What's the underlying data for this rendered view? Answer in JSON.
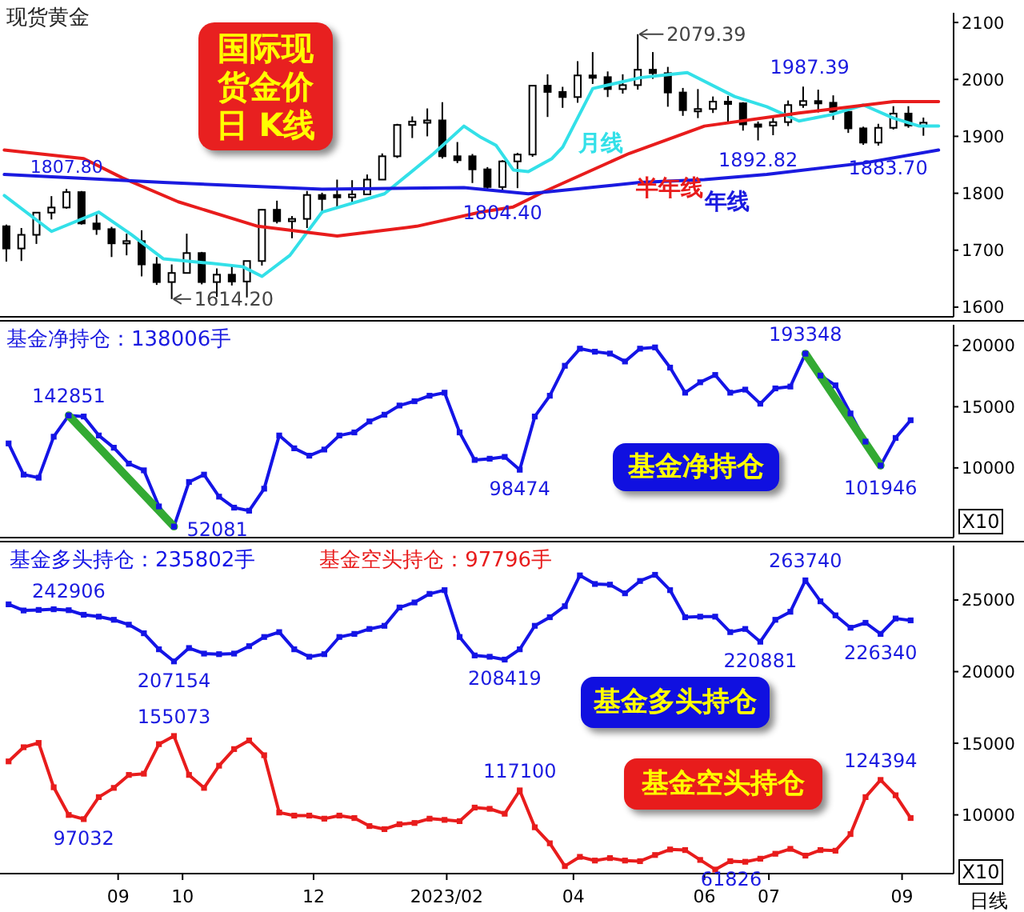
{
  "chart_data": [
    {
      "type": "candlestick",
      "title": "现货黄金",
      "color": "#000000",
      "tick_labels": "y",
      "xlim": [
        "2022-07-08",
        "2023-09-25"
      ],
      "ylim": [
        1583,
        2117
      ],
      "yticks": [
        1600,
        1700,
        1800,
        1900,
        2000,
        2100
      ],
      "x": [
        "2022-07-11",
        "2022-07-18",
        "2022-07-25",
        "2022-08-01",
        "2022-08-08",
        "2022-08-15",
        "2022-08-22",
        "2022-08-29",
        "2022-09-05",
        "2022-09-12",
        "2022-09-19",
        "2022-09-26",
        "2022-10-03",
        "2022-10-10",
        "2022-10-17",
        "2022-10-24",
        "2022-10-31",
        "2022-11-07",
        "2022-11-14",
        "2022-11-21",
        "2022-11-28",
        "2022-12-05",
        "2022-12-12",
        "2022-12-19",
        "2022-12-26",
        "2023-01-02",
        "2023-01-09",
        "2023-01-16",
        "2023-01-23",
        "2023-01-30",
        "2023-02-06",
        "2023-02-13",
        "2023-02-20",
        "2023-02-27",
        "2023-03-06",
        "2023-03-13",
        "2023-03-20",
        "2023-03-27",
        "2023-04-03",
        "2023-04-10",
        "2023-04-17",
        "2023-04-24",
        "2023-05-01",
        "2023-05-08",
        "2023-05-15",
        "2023-05-22",
        "2023-05-29",
        "2023-06-05",
        "2023-06-12",
        "2023-06-19",
        "2023-06-26",
        "2023-07-03",
        "2023-07-10",
        "2023-07-17",
        "2023-07-24",
        "2023-07-31",
        "2023-08-07",
        "2023-08-14",
        "2023-08-21",
        "2023-08-28",
        "2023-09-04",
        "2023-09-11"
      ],
      "ohlc": [
        [
          1742,
          1745,
          1680,
          1703
        ],
        [
          1703,
          1739,
          1681,
          1727
        ],
        [
          1727,
          1767,
          1711,
          1766
        ],
        [
          1766,
          1795,
          1754,
          1775
        ],
        [
          1775,
          1807.8,
          1773,
          1802
        ],
        [
          1802,
          1804,
          1745,
          1747
        ],
        [
          1747,
          1765,
          1727,
          1737
        ],
        [
          1737,
          1741,
          1688,
          1712
        ],
        [
          1712,
          1729,
          1691,
          1716
        ],
        [
          1716,
          1735,
          1654,
          1675
        ],
        [
          1675,
          1688,
          1639,
          1644
        ],
        [
          1644,
          1675,
          1614.2,
          1660
        ],
        [
          1660,
          1729,
          1660,
          1695
        ],
        [
          1695,
          1697,
          1640,
          1644
        ],
        [
          1644,
          1668,
          1618,
          1657
        ],
        [
          1657,
          1675,
          1638,
          1645
        ],
        [
          1645,
          1681,
          1617,
          1681
        ],
        [
          1681,
          1772,
          1673,
          1771
        ],
        [
          1771,
          1787,
          1747,
          1751
        ],
        [
          1751,
          1760,
          1721,
          1755
        ],
        [
          1755,
          1804,
          1739,
          1797
        ],
        [
          1797,
          1801,
          1764,
          1790
        ],
        [
          1797,
          1824,
          1774,
          1793
        ],
        [
          1793,
          1823,
          1784,
          1798
        ],
        [
          1798,
          1833,
          1797,
          1824
        ],
        [
          1824,
          1870,
          1824,
          1865
        ],
        [
          1865,
          1922,
          1862,
          1920
        ],
        [
          1920,
          1935,
          1897,
          1926
        ],
        [
          1926,
          1949,
          1900,
          1928
        ],
        [
          1928,
          1960,
          1861,
          1865
        ],
        [
          1865,
          1890,
          1853,
          1858
        ],
        [
          1865,
          1869,
          1818,
          1842
        ],
        [
          1842,
          1846,
          1807,
          1811
        ],
        [
          1811,
          1858,
          1804.4,
          1856
        ],
        [
          1856,
          1871,
          1809,
          1868
        ],
        [
          1868,
          1989,
          1864,
          1989
        ],
        [
          1989,
          2009,
          1934,
          1978
        ],
        [
          1978,
          1987,
          1950,
          1969
        ],
        [
          1969,
          2032,
          1959,
          2007
        ],
        [
          2007,
          2048,
          1992,
          2004
        ],
        [
          2004,
          2014,
          1969,
          1983
        ],
        [
          1983,
          2009,
          1975,
          1990
        ],
        [
          1990,
          2079.39,
          1982,
          2017
        ],
        [
          2017,
          2048,
          2001,
          2011
        ],
        [
          2011,
          2022,
          1952,
          1977
        ],
        [
          1977,
          1985,
          1936,
          1946
        ],
        [
          1946,
          1983,
          1932,
          1948
        ],
        [
          1948,
          1970,
          1941,
          1961
        ],
        [
          1961,
          1971,
          1925,
          1958
        ],
        [
          1958,
          1960,
          1910,
          1921
        ],
        [
          1921,
          1926,
          1892.82,
          1919
        ],
        [
          1919,
          1935,
          1902,
          1925
        ],
        [
          1925,
          1963,
          1918,
          1955
        ],
        [
          1955,
          1987.39,
          1950,
          1962
        ],
        [
          1962,
          1982,
          1942,
          1959
        ],
        [
          1959,
          1972,
          1929,
          1943
        ],
        [
          1943,
          1948,
          1906,
          1914
        ],
        [
          1914,
          1917,
          1885,
          1889
        ],
        [
          1889,
          1922,
          1883.7,
          1915
        ],
        [
          1915,
          1953,
          1912,
          1940
        ],
        [
          1940,
          1953,
          1915,
          1919
        ],
        [
          1919,
          1933,
          1901,
          1924
        ]
      ],
      "series": [
        {
          "type": "line",
          "name": "月线",
          "color": "#33e0e8",
          "x": [
            "2022-07-10",
            "2022-08-01",
            "2022-08-23",
            "2022-09-07",
            "2022-09-22",
            "2022-10-14",
            "2022-10-29",
            "2022-11-07",
            "2022-11-20",
            "2022-12-05",
            "2023-01-03",
            "2023-01-26",
            "2023-02-09",
            "2023-02-17",
            "2023-02-24",
            "2023-03-04",
            "2023-03-11",
            "2023-03-22",
            "2023-03-27",
            "2023-04-10",
            "2023-05-02",
            "2023-05-17",
            "2023-05-24",
            "2023-06-15",
            "2023-06-30",
            "2023-07-15",
            "2023-07-30",
            "2023-08-14",
            "2023-08-28",
            "2023-09-09",
            "2023-09-18"
          ],
          "values": [
            1796,
            1733,
            1767,
            1728,
            1685,
            1677,
            1671,
            1654,
            1691,
            1767,
            1799,
            1870,
            1918,
            1898,
            1884,
            1841,
            1838,
            1861,
            1881,
            1984,
            2003,
            2009,
            2012,
            1970,
            1952,
            1927,
            1938,
            1955,
            1932,
            1918,
            1918
          ]
        },
        {
          "type": "line",
          "name": "半年线",
          "color": "#e81c1c",
          "x": [
            "2022-07-10",
            "2022-08-16",
            "2022-09-03",
            "2022-09-29",
            "2022-11-05",
            "2022-12-12",
            "2023-01-18",
            "2023-02-17",
            "2023-03-04",
            "2023-03-19",
            "2023-04-27",
            "2023-06-01",
            "2023-07-15",
            "2023-08-28",
            "2023-09-18"
          ],
          "values": [
            1876,
            1861,
            1827,
            1785,
            1742,
            1725,
            1742,
            1767,
            1776,
            1804,
            1870,
            1918,
            1941,
            1961,
            1961
          ]
        },
        {
          "type": "line",
          "name": "年线",
          "color": "#1a1ae0",
          "x": [
            "2022-07-10",
            "2022-09-22",
            "2022-12-05",
            "2023-02-09",
            "2023-03-11",
            "2023-05-02",
            "2023-06-01",
            "2023-06-30",
            "2023-08-14",
            "2023-09-18"
          ],
          "values": [
            1833,
            1819,
            1807,
            1810,
            1799,
            1819,
            1824,
            1833,
            1853,
            1876
          ]
        }
      ],
      "annotations": [
        "国际现货金价日 K线",
        {
          "text": "1807.80",
          "x": "2022-08-08",
          "y": 1807.8
        },
        {
          "text": "1614.20",
          "x": "2022-09-26",
          "y": 1614.2
        },
        {
          "text": "2079.39",
          "x": "2023-05-01",
          "y": 2079.39
        },
        {
          "text": "1987.39",
          "x": "2023-07-17",
          "y": 1987.39
        },
        {
          "text": "1892.82",
          "x": "2023-06-26",
          "y": 1892.82
        },
        {
          "text": "1804.40",
          "x": "2023-02-27",
          "y": 1804.4
        },
        {
          "text": "1883.70",
          "x": "2023-08-21",
          "y": 1883.7
        }
      ]
    },
    {
      "type": "line",
      "title": "基金净持仓：138006手",
      "marker": "square",
      "tick_labels": "y",
      "xlim": [
        "2022-07-08",
        "2023-09-25"
      ],
      "ylim": [
        4300,
        21700
      ],
      "yticks": [
        10000,
        15000,
        20000
      ],
      "x": [
        "2022-07-12",
        "2022-07-19",
        "2022-07-26",
        "2022-08-02",
        "2022-08-09",
        "2022-08-16",
        "2022-08-23",
        "2022-08-30",
        "2022-09-06",
        "2022-09-13",
        "2022-09-20",
        "2022-09-27",
        "2022-10-04",
        "2022-10-11",
        "2022-10-18",
        "2022-10-25",
        "2022-11-01",
        "2022-11-08",
        "2022-11-15",
        "2022-11-22",
        "2022-11-29",
        "2022-12-06",
        "2022-12-13",
        "2022-12-20",
        "2022-12-27",
        "2023-01-03",
        "2023-01-10",
        "2023-01-17",
        "2023-01-24",
        "2023-01-31",
        "2023-02-07",
        "2023-02-14",
        "2023-02-21",
        "2023-02-28",
        "2023-03-07",
        "2023-03-14",
        "2023-03-21",
        "2023-03-28",
        "2023-04-04",
        "2023-04-11",
        "2023-04-18",
        "2023-04-25",
        "2023-05-02",
        "2023-05-09",
        "2023-05-16",
        "2023-05-23",
        "2023-05-30",
        "2023-06-06",
        "2023-06-13",
        "2023-06-20",
        "2023-06-27",
        "2023-07-04",
        "2023-07-11",
        "2023-07-18",
        "2023-07-25",
        "2023-08-01",
        "2023-08-08",
        "2023-08-15",
        "2023-08-22",
        "2023-08-29",
        "2023-09-05"
      ],
      "series": [
        {
          "color": "#1414e6",
          "values": [
            12000,
            9450,
            9200,
            12550,
            14285.1,
            14200,
            12650,
            11650,
            10350,
            9800,
            6850,
            5208.1,
            8850,
            9450,
            7650,
            6750,
            6500,
            8300,
            12650,
            11600,
            11000,
            11500,
            12650,
            12900,
            13800,
            14350,
            15100,
            15450,
            15900,
            16150,
            12900,
            10650,
            10750,
            10900,
            9847.4,
            14200,
            15900,
            18350,
            19750,
            19500,
            19350,
            18700,
            19750,
            19850,
            18200,
            16150,
            17000,
            17600,
            16150,
            16400,
            15250,
            16500,
            16650,
            19334.8,
            17550,
            16750,
            14450,
            12150,
            10194.6,
            12450,
            13900
          ]
        },
        {
          "type": "line",
          "marker": "none",
          "color": "#33aa33",
          "x": [
            "2022-08-09",
            "2022-09-27"
          ],
          "values": [
            14285.1,
            5208.1
          ]
        },
        {
          "type": "line",
          "marker": "none",
          "color": "#33aa33",
          "x": [
            "2023-07-18",
            "2023-08-22"
          ],
          "values": [
            19334.8,
            10194.6
          ]
        }
      ],
      "annotations": [
        {
          "text": "142851",
          "x": "2022-08-09",
          "y": 14285.1
        },
        {
          "text": "52081",
          "x": "2022-09-27",
          "y": 5208.1
        },
        {
          "text": "98474",
          "x": "2023-03-07",
          "y": 9847.4
        },
        {
          "text": "193348",
          "x": "2023-07-18",
          "y": 19334.8
        },
        {
          "text": "101946",
          "x": "2023-08-22",
          "y": 10194.6
        },
        "基金净持仓",
        "X10"
      ]
    },
    {
      "type": "line",
      "marker": "square",
      "legend": "top left",
      "xlim": [
        "2022-07-08",
        "2023-09-25"
      ],
      "ylim": [
        5900,
        28800
      ],
      "yticks": [
        10000,
        15000,
        20000,
        25000
      ],
      "xticks": [
        {
          "value": "2022-09-01",
          "label": "09"
        },
        {
          "value": "2022-10-01",
          "label": "10"
        },
        {
          "value": "2022-12-01",
          "label": "12"
        },
        {
          "value": "2023-02-01",
          "label": "2023/02"
        },
        {
          "value": "2023-04-01",
          "label": "04"
        },
        {
          "value": "2023-06-01",
          "label": "06"
        },
        {
          "value": "2023-07-01",
          "label": "07"
        },
        {
          "value": "2023-09-01",
          "label": "09"
        }
      ],
      "x": [
        "2022-07-12",
        "2022-07-19",
        "2022-07-26",
        "2022-08-02",
        "2022-08-09",
        "2022-08-16",
        "2022-08-23",
        "2022-08-30",
        "2022-09-06",
        "2022-09-13",
        "2022-09-20",
        "2022-09-27",
        "2022-10-04",
        "2022-10-11",
        "2022-10-18",
        "2022-10-25",
        "2022-11-01",
        "2022-11-08",
        "2022-11-15",
        "2022-11-22",
        "2022-11-29",
        "2022-12-06",
        "2022-12-13",
        "2022-12-20",
        "2022-12-27",
        "2023-01-03",
        "2023-01-10",
        "2023-01-17",
        "2023-01-24",
        "2023-01-31",
        "2023-02-07",
        "2023-02-14",
        "2023-02-21",
        "2023-02-28",
        "2023-03-07",
        "2023-03-14",
        "2023-03-21",
        "2023-03-28",
        "2023-04-04",
        "2023-04-11",
        "2023-04-18",
        "2023-04-25",
        "2023-05-02",
        "2023-05-09",
        "2023-05-16",
        "2023-05-23",
        "2023-05-30",
        "2023-06-06",
        "2023-06-13",
        "2023-06-20",
        "2023-06-27",
        "2023-07-04",
        "2023-07-11",
        "2023-07-18",
        "2023-07-25",
        "2023-08-01",
        "2023-08-08",
        "2023-08-15",
        "2023-08-22",
        "2023-08-29",
        "2023-09-05"
      ],
      "series": [
        {
          "name": "基金多头持仓：235802手",
          "color": "#1414e6",
          "values": [
            24700,
            24270,
            24310,
            24355,
            24290.6,
            23970,
            23840,
            23620,
            23280,
            22680,
            21560,
            20715.4,
            21650,
            21260,
            21220,
            21260,
            21780,
            22420,
            22760,
            21560,
            21040,
            21220,
            22420,
            22635,
            22980,
            23200,
            24480,
            24830,
            25430,
            25690,
            22420,
            21130,
            21040,
            20841.9,
            21560,
            23200,
            23800,
            24570,
            26720,
            26120,
            26075,
            25470,
            26330,
            26760,
            25690,
            23800,
            23840,
            23840,
            22760,
            22980,
            22088.1,
            23620,
            24180,
            26374,
            24910,
            23930,
            23065,
            23410,
            22634,
            23710,
            23580.2
          ]
        },
        {
          "name": "基金空头持仓：97796手",
          "color": "#e81c1c",
          "values": [
            13734,
            14723,
            15024,
            11928,
            9993,
            9703.2,
            11240,
            11885,
            12790,
            12874,
            14938,
            15507.3,
            12790,
            11885,
            13433,
            14594,
            15196,
            14164,
            10165,
            9950,
            9950,
            9735,
            9950,
            9778,
            9220,
            9004,
            9348,
            9434,
            9735,
            9650,
            9563,
            10509,
            10423,
            10079,
            11710,
            9133,
            8015,
            6424,
            7069,
            6811,
            6983,
            6811,
            6768,
            7198,
            7585,
            7542,
            6854,
            6182.6,
            6768,
            6725,
            6940,
            7284,
            7628,
            7155,
            7542,
            7499,
            8660,
            11240,
            12439.4,
            11369,
            9779.6
          ]
        }
      ],
      "annotations": [
        {
          "text": "242906",
          "x": "2022-08-09",
          "y": 24290.6
        },
        {
          "text": "207154",
          "x": "2022-09-27",
          "y": 20715.4
        },
        {
          "text": "208419",
          "x": "2023-02-28",
          "y": 20841.9
        },
        {
          "text": "220881",
          "x": "2023-06-27",
          "y": 22088.1
        },
        {
          "text": "263740",
          "x": "2023-07-18",
          "y": 26374
        },
        {
          "text": "226340",
          "x": "2023-08-22",
          "y": 22634
        },
        {
          "text": "155073",
          "x": "2022-09-27",
          "y": 15507.3
        },
        {
          "text": "97032",
          "x": "2022-08-16",
          "y": 9703.2
        },
        {
          "text": "117100",
          "x": "2023-03-07",
          "y": 11710
        },
        {
          "text": "61826",
          "x": "2023-06-06",
          "y": 6182.6
        },
        {
          "text": "124394",
          "x": "2023-08-22",
          "y": 12439.4
        },
        "基金多头持仓",
        "基金空头持仓",
        "X10",
        "日线"
      ]
    }
  ]
}
